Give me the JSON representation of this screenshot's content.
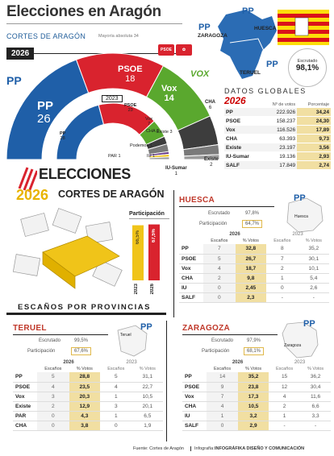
{
  "header": {
    "title_a": "Elecciones",
    "title_b": "en Aragón",
    "subtitle": "CORTES DE ARAGÓN",
    "year": "2026",
    "majority": "Mayoría absoluta 34",
    "map_labels": [
      "ZARAGOZA",
      "HUESCA",
      "TERUEL"
    ],
    "escrutado_label": "Escrutado",
    "escrutado_value": "98,1%"
  },
  "parliament": {
    "pp": {
      "name": "PP",
      "seats": "26"
    },
    "psoe": {
      "name": "PSOE",
      "seats": "18"
    },
    "vox": {
      "name": "Vox",
      "seats": "14"
    },
    "cha": {
      "name": "CHA",
      "seats": "6"
    },
    "existe": {
      "name": "Existe",
      "seats": "2"
    },
    "iu": {
      "name": "IU-Sumar",
      "seats": "1"
    },
    "inner": {
      "year": "2023",
      "pp": {
        "name": "PP",
        "seats": "28"
      },
      "psoe": {
        "name": "PSOE",
        "seats": "23"
      },
      "vox": {
        "name": "Vox",
        "seats": "7"
      },
      "cha": {
        "name": "CHA",
        "seats": "3"
      },
      "existe": {
        "name": "Existe",
        "seats": "3"
      },
      "podemos": {
        "name": "Podemos",
        "seats": "1"
      },
      "par": {
        "name": "PAR",
        "seats": "1"
      },
      "iu": {
        "name": "IU",
        "seats": "1"
      }
    },
    "vox_logo": "VOX",
    "psoe_logo": "PSOE"
  },
  "globales": {
    "title": "DATOS GLOBALES",
    "year": "2026",
    "col_votes": "Nº de votos",
    "col_pct": "Porcentaje",
    "rows": [
      {
        "party": "PP",
        "votes": "222.926",
        "pct": "34,24"
      },
      {
        "party": "PSOE",
        "votes": "158.237",
        "pct": "24,30"
      },
      {
        "party": "Vox",
        "votes": "116.526",
        "pct": "17,89"
      },
      {
        "party": "CHA",
        "votes": "63.393",
        "pct": "9,73"
      },
      {
        "party": "Existe",
        "votes": "23.197",
        "pct": "3,56"
      },
      {
        "party": "IU-Sumar",
        "votes": "19.136",
        "pct": "2,93"
      },
      {
        "party": "SALF",
        "votes": "17.849",
        "pct": "2,74"
      }
    ]
  },
  "banner": {
    "line1": "ELECCIONES",
    "year": "2026",
    "line2": "CORTES DE ARAGÓN"
  },
  "participacion": {
    "title": "Participación",
    "y2023": "66,5%",
    "y2026": "67,5%",
    "label2023": "2023",
    "label2026": "2026"
  },
  "escanos_title": "ESCAÑOS POR PROVINCIAS",
  "huesca": {
    "name": "HUESCA",
    "escrutado_label": "Escrutado",
    "escrutado": "97,8%",
    "participacion_label": "Participación",
    "participacion": "64,7%",
    "map_label": "Huesca",
    "year_now": "2026",
    "year_prev": "2023",
    "h_seats": "Escaños",
    "h_votes": "% Votos",
    "rows": [
      {
        "p": "PP",
        "s": "7",
        "v": "32,8",
        "ps": "8",
        "pv": "35,2"
      },
      {
        "p": "PSOE",
        "s": "5",
        "v": "26,7",
        "ps": "7",
        "pv": "30,1"
      },
      {
        "p": "Vox",
        "s": "4",
        "v": "18,7",
        "ps": "2",
        "pv": "10,1"
      },
      {
        "p": "CHA",
        "s": "2",
        "v": "9,8",
        "ps": "1",
        "pv": "5,4"
      },
      {
        "p": "IU",
        "s": "0",
        "v": "2,45",
        "ps": "0",
        "pv": "2,6"
      },
      {
        "p": "SALF",
        "s": "0",
        "v": "2,3",
        "ps": "-",
        "pv": "-"
      }
    ]
  },
  "teruel": {
    "name": "TERUEL",
    "escrutado_label": "Escrutado",
    "escrutado": "99,5%",
    "participacion_label": "Participación",
    "participacion": "67,6%",
    "map_label": "Teruel",
    "year_now": "2026",
    "year_prev": "2023",
    "h_seats": "Escaños",
    "h_votes": "% Votos",
    "rows": [
      {
        "p": "PP",
        "s": "5",
        "v": "28,8",
        "ps": "5",
        "pv": "31,1"
      },
      {
        "p": "PSOE",
        "s": "4",
        "v": "23,5",
        "ps": "4",
        "pv": "22,7"
      },
      {
        "p": "Vox",
        "s": "3",
        "v": "20,3",
        "ps": "1",
        "pv": "10,5"
      },
      {
        "p": "Existe",
        "s": "2",
        "v": "12,9",
        "ps": "3",
        "pv": "20,1"
      },
      {
        "p": "PAR",
        "s": "0",
        "v": "4,3",
        "ps": "1",
        "pv": "6,5"
      },
      {
        "p": "CHA",
        "s": "0",
        "v": "3,8",
        "ps": "0",
        "pv": "1,9"
      }
    ]
  },
  "zaragoza": {
    "name": "ZARAGOZA",
    "escrutado_label": "Escrutado",
    "escrutado": "97,9%",
    "participacion_label": "Participación",
    "participacion": "68,1%",
    "map_label": "Zaragoza",
    "year_now": "2026",
    "year_prev": "2023",
    "h_seats": "Escaños",
    "h_votes": "% Votos",
    "rows": [
      {
        "p": "PP",
        "s": "14",
        "v": "35,2",
        "ps": "15",
        "pv": "36,2"
      },
      {
        "p": "PSOE",
        "s": "9",
        "v": "23,8",
        "ps": "12",
        "pv": "30,4"
      },
      {
        "p": "Vox",
        "s": "7",
        "v": "17,3",
        "ps": "4",
        "pv": "11,6"
      },
      {
        "p": "CHA",
        "s": "4",
        "v": "10,5",
        "ps": "2",
        "pv": "6,6"
      },
      {
        "p": "IU",
        "s": "1",
        "v": "3,2",
        "ps": "1",
        "pv": "3,3"
      },
      {
        "p": "SALF",
        "s": "0",
        "v": "2,9",
        "ps": "-",
        "pv": "-"
      }
    ]
  },
  "footer": {
    "source": "Fuente: Cortes de Aragón",
    "credit_label": "Infografía:",
    "credit": "INFOGRÁFIKA DISEÑO Y COMUNICACIÓN"
  },
  "colors": {
    "pp": "#1f5fa8",
    "psoe": "#d9232e",
    "vox": "#5aa82e",
    "cha": "#3d3d3d",
    "existe": "#7a7a7a",
    "iu": "#9b9b9b",
    "highlight": "#f1dfa2",
    "accent": "#c0392b"
  },
  "chart_data": [
    {
      "type": "pie",
      "title": "CORTES DE ARAGÓN 2026",
      "categories": [
        "PP",
        "PSOE",
        "Vox",
        "CHA",
        "Existe",
        "IU-Sumar"
      ],
      "values": [
        26,
        18,
        14,
        6,
        2,
        1
      ]
    },
    {
      "type": "pie",
      "title": "2023",
      "categories": [
        "PP",
        "PSOE",
        "Vox",
        "CHA",
        "Existe",
        "Podemos",
        "PAR",
        "IU"
      ],
      "values": [
        28,
        23,
        7,
        3,
        3,
        1,
        1,
        1
      ]
    },
    {
      "type": "bar",
      "title": "Participación",
      "categories": [
        "2023",
        "2026"
      ],
      "values": [
        66.5,
        67.5
      ]
    }
  ]
}
